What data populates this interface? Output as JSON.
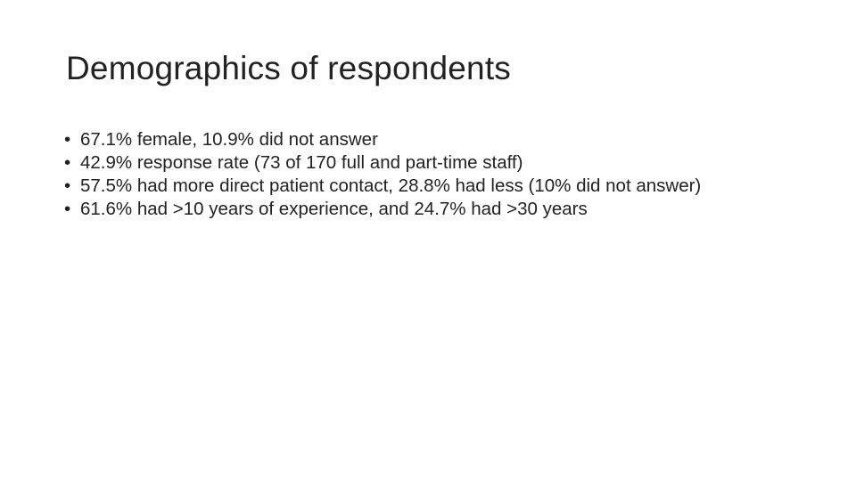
{
  "slide": {
    "title": "Demographics of respondents",
    "bullets": [
      "67.1% female, 10.9% did not answer",
      "42.9% response rate (73 of 170 full and part-time staff)",
      "57.5% had more direct patient contact, 28.8% had less (10% did not answer)",
      "61.6% had >10 years of experience, and 24.7% had >30 years"
    ]
  }
}
